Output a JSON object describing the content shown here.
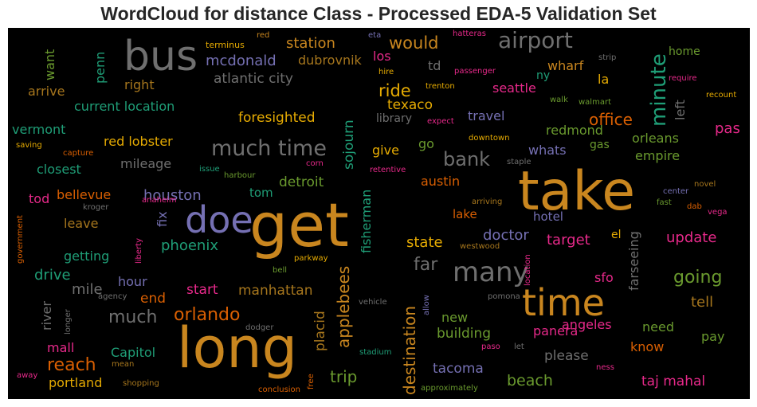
{
  "title": "WordCloud for distance Class - Processed EDA-5 Validation Set",
  "palette": {
    "background": "#000000",
    "orange": "#c9861f",
    "gray": "#6f6f6f",
    "green": "#6a9a2e",
    "teal": "#1f9e77",
    "purple": "#7570b3",
    "pink": "#e7298a",
    "rust": "#d95f02",
    "gold": "#e6ab02",
    "brown": "#a6761d"
  },
  "words": [
    {
      "text": "bus"
    },
    {
      "text": "airport"
    },
    {
      "text": "take"
    },
    {
      "text": "get"
    },
    {
      "text": "long"
    },
    {
      "text": "time"
    },
    {
      "text": "doe"
    },
    {
      "text": "many"
    },
    {
      "text": "much time"
    },
    {
      "text": "minute"
    },
    {
      "text": "would"
    },
    {
      "text": "station"
    },
    {
      "text": "dubrovnik"
    },
    {
      "text": "los"
    },
    {
      "text": "mcdonald"
    },
    {
      "text": "atlantic city"
    },
    {
      "text": "penn"
    },
    {
      "text": "want"
    },
    {
      "text": "arrive"
    },
    {
      "text": "right"
    },
    {
      "text": "current location"
    },
    {
      "text": "vermont"
    },
    {
      "text": "saving"
    },
    {
      "text": "capture"
    },
    {
      "text": "closest"
    },
    {
      "text": "red lobster"
    },
    {
      "text": "mileage"
    },
    {
      "text": "foresighted"
    },
    {
      "text": "ride"
    },
    {
      "text": "texaco"
    },
    {
      "text": "library"
    },
    {
      "text": "expect"
    },
    {
      "text": "sojourn"
    },
    {
      "text": "bank"
    },
    {
      "text": "travel"
    },
    {
      "text": "office"
    },
    {
      "text": "redmond"
    },
    {
      "text": "whats"
    },
    {
      "text": "gas"
    },
    {
      "text": "orleans"
    },
    {
      "text": "empire"
    },
    {
      "text": "pas"
    },
    {
      "text": "left"
    },
    {
      "text": "seattle"
    },
    {
      "text": "ny"
    },
    {
      "text": "wharf"
    },
    {
      "text": "la"
    },
    {
      "text": "home"
    },
    {
      "text": "require"
    },
    {
      "text": "recount"
    },
    {
      "text": "strip"
    },
    {
      "text": "walk"
    },
    {
      "text": "walmart"
    },
    {
      "text": "passenger"
    },
    {
      "text": "hatteras"
    },
    {
      "text": "eta"
    },
    {
      "text": "red"
    },
    {
      "text": "terminus"
    },
    {
      "text": "hire"
    },
    {
      "text": "trenton"
    },
    {
      "text": "td"
    },
    {
      "text": "tod"
    },
    {
      "text": "bellevue"
    },
    {
      "text": "kroger"
    },
    {
      "text": "houston"
    },
    {
      "text": "tom"
    },
    {
      "text": "detroit"
    },
    {
      "text": "fisherman"
    },
    {
      "text": "austin"
    },
    {
      "text": "go"
    },
    {
      "text": "give"
    },
    {
      "text": "issue"
    },
    {
      "text": "harbour"
    },
    {
      "text": "corn"
    },
    {
      "text": "retentive"
    },
    {
      "text": "anaheim"
    },
    {
      "text": "downtown"
    },
    {
      "text": "staple"
    },
    {
      "text": "arriving"
    },
    {
      "text": "lake"
    },
    {
      "text": "hotel"
    },
    {
      "text": "fast"
    },
    {
      "text": "dab"
    },
    {
      "text": "vega"
    },
    {
      "text": "center"
    },
    {
      "text": "novel"
    },
    {
      "text": "leave"
    },
    {
      "text": "fix"
    },
    {
      "text": "phoenix"
    },
    {
      "text": "getting"
    },
    {
      "text": "liberty"
    },
    {
      "text": "government"
    },
    {
      "text": "drive"
    },
    {
      "text": "mile"
    },
    {
      "text": "hour"
    },
    {
      "text": "end"
    },
    {
      "text": "start"
    },
    {
      "text": "manhattan"
    },
    {
      "text": "orlando"
    },
    {
      "text": "much"
    },
    {
      "text": "applebees"
    },
    {
      "text": "state"
    },
    {
      "text": "far"
    },
    {
      "text": "doctor"
    },
    {
      "text": "target"
    },
    {
      "text": "el"
    },
    {
      "text": "farseeing"
    },
    {
      "text": "update"
    },
    {
      "text": "westwood"
    },
    {
      "text": "location"
    },
    {
      "text": "going"
    },
    {
      "text": "tell"
    },
    {
      "text": "sfo"
    },
    {
      "text": "parkway"
    },
    {
      "text": "bell"
    },
    {
      "text": "river"
    },
    {
      "text": "agency"
    },
    {
      "text": "longer"
    },
    {
      "text": "mall"
    },
    {
      "text": "Capitol"
    },
    {
      "text": "reach"
    },
    {
      "text": "portland"
    },
    {
      "text": "shopping"
    },
    {
      "text": "mean"
    },
    {
      "text": "away"
    },
    {
      "text": "placid"
    },
    {
      "text": "dodger"
    },
    {
      "text": "conclusion"
    },
    {
      "text": "free"
    },
    {
      "text": "vehicle"
    },
    {
      "text": "stadium"
    },
    {
      "text": "destination"
    },
    {
      "text": "allow"
    },
    {
      "text": "pomona"
    },
    {
      "text": "new"
    },
    {
      "text": "building"
    },
    {
      "text": "trip"
    },
    {
      "text": "tacoma"
    },
    {
      "text": "approximately"
    },
    {
      "text": "beach"
    },
    {
      "text": "paso"
    },
    {
      "text": "let"
    },
    {
      "text": "panera"
    },
    {
      "text": "please"
    },
    {
      "text": "angeles"
    },
    {
      "text": "need"
    },
    {
      "text": "know"
    },
    {
      "text": "pay"
    },
    {
      "text": "ness"
    },
    {
      "text": "taj mahal"
    }
  ]
}
